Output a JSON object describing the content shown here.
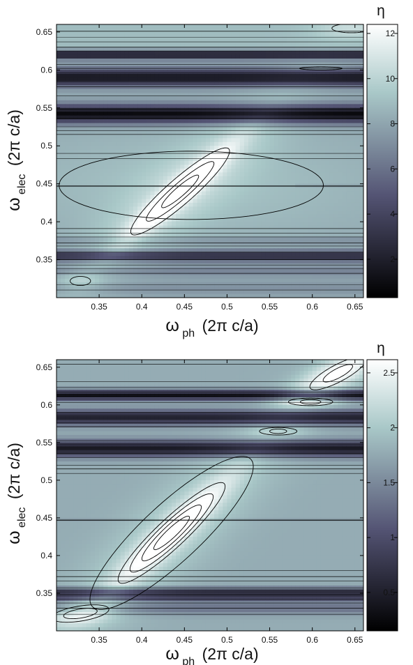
{
  "chart_data": [
    {
      "type": "heatmap",
      "x": [
        0.3,
        0.66
      ],
      "y": [
        0.3,
        0.66
      ],
      "xticks": [
        "0.35",
        "0.4",
        "0.45",
        "0.5",
        "0.55",
        "0.6",
        "0.65"
      ],
      "xtick_values": [
        0.35,
        0.4,
        0.45,
        0.5,
        0.55,
        0.6,
        0.65
      ],
      "yticks": [
        "0.35",
        "0.4",
        "0.45",
        "0.5",
        "0.55",
        "0.6",
        "0.65"
      ],
      "ytick_values": [
        0.35,
        0.4,
        0.45,
        0.5,
        0.55,
        0.6,
        0.65
      ],
      "xlim": [
        0.3,
        0.66
      ],
      "ylim": [
        0.3,
        0.66
      ],
      "xlabel": "ωph (2π c/a)",
      "ylabel": "ωelec (2π c/a)",
      "colorbar_label": "η",
      "colorbar_range": [
        0.3,
        12.4
      ],
      "colorbar_ticks": [
        "2",
        "4",
        "6",
        "8",
        "10",
        "12"
      ],
      "colorbar_tick_values": [
        2,
        4,
        6,
        8,
        10,
        12
      ],
      "grid": false,
      "colormap": "bone",
      "peak": {
        "x": 0.44,
        "y": 0.44,
        "value": 12.4
      }
    },
    {
      "type": "heatmap",
      "x": [
        0.3,
        0.66
      ],
      "y": [
        0.3,
        0.66
      ],
      "xticks": [
        "0.35",
        "0.4",
        "0.45",
        "0.5",
        "0.55",
        "0.6",
        "0.65"
      ],
      "xtick_values": [
        0.35,
        0.4,
        0.45,
        0.5,
        0.55,
        0.6,
        0.65
      ],
      "yticks": [
        "0.35",
        "0.4",
        "0.45",
        "0.5",
        "0.55",
        "0.6",
        "0.65"
      ],
      "ytick_values": [
        0.35,
        0.4,
        0.45,
        0.5,
        0.55,
        0.6,
        0.65
      ],
      "xlim": [
        0.3,
        0.66
      ],
      "ylim": [
        0.3,
        0.66
      ],
      "xlabel": "ωph (2π c/a)",
      "ylabel": "ωelec (2π c/a)",
      "colorbar_label": "η",
      "colorbar_range": [
        0.15,
        2.62
      ],
      "colorbar_ticks": [
        "0.5",
        "1",
        "1.5",
        "2",
        "2.5"
      ],
      "colorbar_tick_values": [
        0.5,
        1,
        1.5,
        2,
        2.5
      ],
      "grid": false,
      "colormap": "bone",
      "peak": {
        "x": 0.43,
        "y": 0.42,
        "value": 2.62
      }
    }
  ],
  "labels": {
    "top": {
      "xlabel_main": "ω",
      "xlabel_sub": "ph",
      "xlabel_rest": "(2π c/a)",
      "ylabel_main": "ω",
      "ylabel_sub": "elec",
      "ylabel_rest": "(2π c/a)",
      "colorbar_label": "η"
    },
    "bottom": {
      "xlabel_main": "ω",
      "xlabel_sub": "ph",
      "xlabel_rest": "(2π c/a)",
      "ylabel_main": "ω",
      "ylabel_sub": "elec",
      "ylabel_rest": "(2π c/a)",
      "colorbar_label": "η"
    }
  },
  "colors": {
    "dark": "#000000",
    "light": "#ffffff",
    "contour": "#000000",
    "frame": "#000000"
  }
}
